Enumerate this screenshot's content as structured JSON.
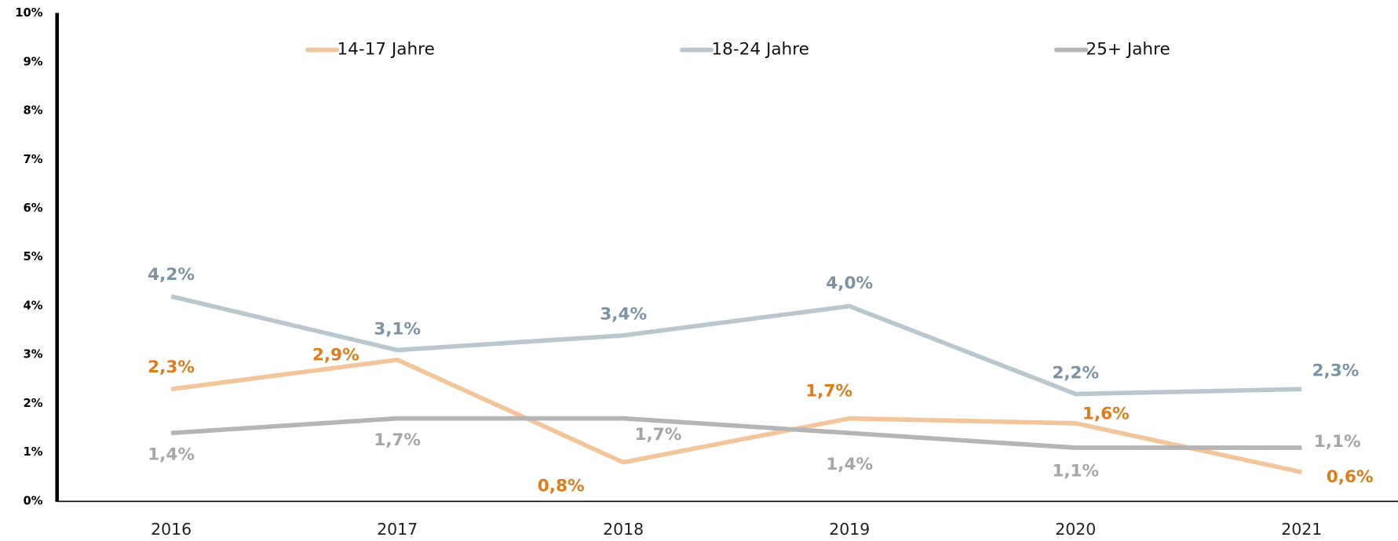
{
  "chart_data": {
    "type": "line",
    "categories": [
      "2016",
      "2017",
      "2018",
      "2019",
      "2020",
      "2021"
    ],
    "series": [
      {
        "name": "14-17 Jahre",
        "color": "#f2c59b",
        "label_color": "#e07b1a",
        "values": [
          2.3,
          2.9,
          0.8,
          1.7,
          1.6,
          0.6
        ],
        "value_labels": [
          "2,3%",
          "2,9%",
          "0,8%",
          "1,7%",
          "1,6%",
          "0,6%"
        ]
      },
      {
        "name": "18-24 Jahre",
        "color": "#b9c7cf",
        "label_color": "#7b93a6",
        "values": [
          4.2,
          3.1,
          3.4,
          4.0,
          2.2,
          2.3
        ],
        "value_labels": [
          "4,2%",
          "3,1%",
          "3,4%",
          "4,0%",
          "2,2%",
          "2,3%"
        ]
      },
      {
        "name": "25+  Jahre",
        "color": "#b5b5b5",
        "label_color": "#a6a6a6",
        "values": [
          1.4,
          1.7,
          1.7,
          1.4,
          1.1,
          1.1
        ],
        "value_labels": [
          "1,4%",
          "1,7%",
          "1,7%",
          "1,4%",
          "1,1%",
          "1,1%"
        ]
      }
    ],
    "ylim": [
      0,
      10
    ],
    "yticks": [
      {
        "value": 0,
        "label": "0%"
      },
      {
        "value": 1,
        "label": "1%"
      },
      {
        "value": 2,
        "label": "2%"
      },
      {
        "value": 3,
        "label": "3%"
      },
      {
        "value": 4,
        "label": "4%"
      },
      {
        "value": 5,
        "label": "5%"
      },
      {
        "value": 6,
        "label": "6%"
      },
      {
        "value": 7,
        "label": "7%"
      },
      {
        "value": 8,
        "label": "8%"
      },
      {
        "value": 9,
        "label": "9%"
      },
      {
        "value": 10,
        "label": "10%"
      }
    ],
    "legend": "top"
  }
}
